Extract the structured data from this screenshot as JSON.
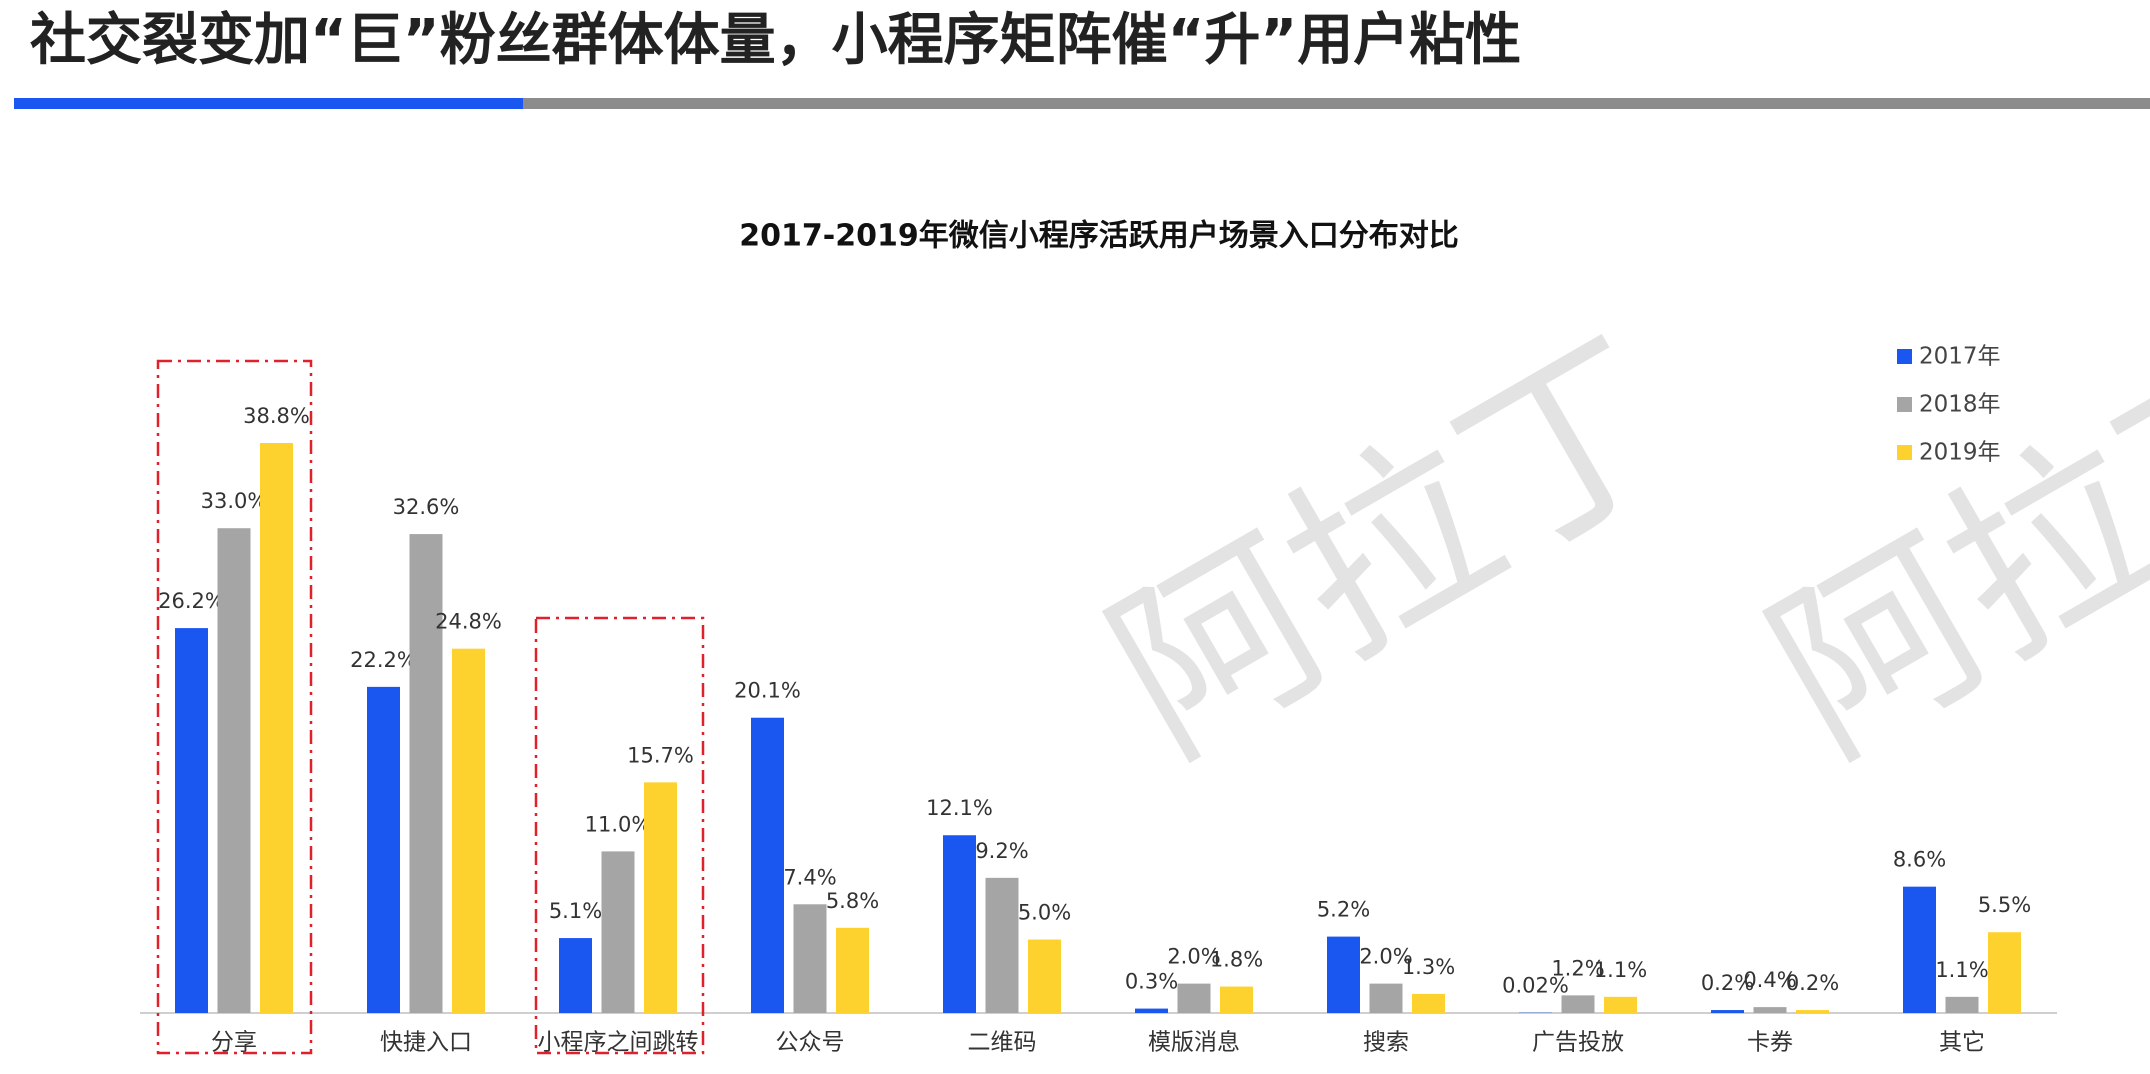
{
  "header": {
    "title": "社交裂变加“巨”粉丝群体体量，小程序矩阵催“升”用户粘性"
  },
  "watermark": "阿拉丁",
  "chart_data": {
    "type": "bar",
    "title": "2017-2019年微信小程序活跃用户场景入口分布对比",
    "categories": [
      "分享",
      "快捷入口",
      "小程序之间跳转",
      "公众号",
      "二维码",
      "模版消息",
      "搜索",
      "广告投放",
      "卡券",
      "其它"
    ],
    "series": [
      {
        "name": "2017年",
        "color": "#1a56f0",
        "values": [
          26.2,
          22.2,
          5.1,
          20.1,
          12.1,
          0.3,
          5.2,
          0.02,
          0.2,
          8.6
        ],
        "value_labels": [
          "26.2%",
          "22.2%",
          "5.1%",
          "20.1%",
          "12.1%",
          "0.3%",
          "5.2%",
          "0.02%",
          "0.2%",
          "8.6%"
        ]
      },
      {
        "name": "2018年",
        "color": "#a5a5a5",
        "values": [
          33.0,
          32.6,
          11.0,
          7.4,
          9.2,
          2.0,
          2.0,
          1.2,
          0.4,
          1.1
        ],
        "value_labels": [
          "33.0%",
          "32.6%",
          "11.0%",
          "7.4%",
          "9.2%",
          "2.0%",
          "2.0%",
          "1.2%",
          "0.4%",
          "1.1%"
        ]
      },
      {
        "name": "2019年",
        "color": "#fdd22f",
        "values": [
          38.8,
          24.8,
          15.7,
          5.8,
          5.0,
          1.8,
          1.3,
          1.1,
          0.2,
          5.5
        ],
        "value_labels": [
          "38.8%",
          "24.8%",
          "15.7%",
          "5.8%",
          "5.0%",
          "1.8%",
          "1.3%",
          "1.1%",
          "0.2%",
          "5.5%"
        ]
      }
    ],
    "legend": "top-right"
  }
}
